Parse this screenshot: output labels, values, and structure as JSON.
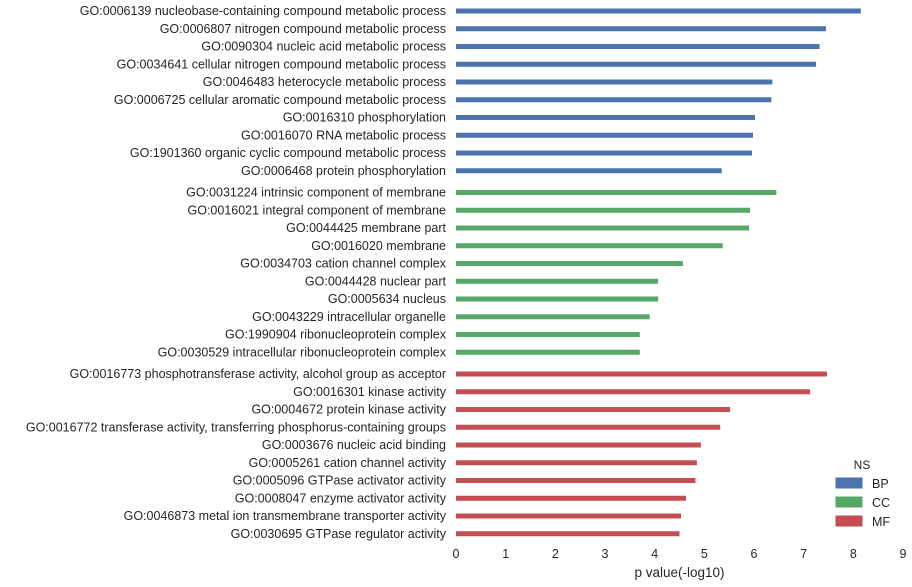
{
  "chart_data": {
    "type": "bar",
    "orientation": "horizontal",
    "xlabel": "p value(-log10)",
    "ylabel": "",
    "xlim": [
      0,
      9
    ],
    "xticks": [
      0,
      1,
      2,
      3,
      4,
      5,
      6,
      7,
      8,
      9
    ],
    "grid": false,
    "legend": {
      "title": "NS",
      "placement": "bottom-right",
      "entries": [
        {
          "name": "BP",
          "color": "#4c72b0"
        },
        {
          "name": "CC",
          "color": "#55a868"
        },
        {
          "name": "MF",
          "color": "#c44e52"
        }
      ]
    },
    "bars": [
      {
        "label": "GO:0006139 nucleobase-containing compound metabolic process",
        "value": 8.15,
        "group": "BP"
      },
      {
        "label": "GO:0006807 nitrogen compound metabolic process",
        "value": 7.45,
        "group": "BP"
      },
      {
        "label": "GO:0090304 nucleic acid metabolic process",
        "value": 7.32,
        "group": "BP"
      },
      {
        "label": "GO:0034641 cellular nitrogen compound metabolic process",
        "value": 7.25,
        "group": "BP"
      },
      {
        "label": "GO:0046483 heterocycle metabolic process",
        "value": 6.37,
        "group": "BP"
      },
      {
        "label": "GO:0006725 cellular aromatic compound metabolic process",
        "value": 6.35,
        "group": "BP"
      },
      {
        "label": "GO:0016310 phosphorylation",
        "value": 6.02,
        "group": "BP"
      },
      {
        "label": "GO:0016070 RNA metabolic process",
        "value": 5.98,
        "group": "BP"
      },
      {
        "label": "GO:1901360 organic cyclic compound metabolic process",
        "value": 5.96,
        "group": "BP"
      },
      {
        "label": "GO:0006468 protein phosphorylation",
        "value": 5.35,
        "group": "BP"
      },
      {
        "label": "GO:0031224 intrinsic component of membrane",
        "value": 6.45,
        "group": "CC"
      },
      {
        "label": "GO:0016021 integral component of membrane",
        "value": 5.92,
        "group": "CC"
      },
      {
        "label": "GO:0044425 membrane part",
        "value": 5.9,
        "group": "CC"
      },
      {
        "label": "GO:0016020 membrane",
        "value": 5.37,
        "group": "CC"
      },
      {
        "label": "GO:0034703 cation channel complex",
        "value": 4.57,
        "group": "CC"
      },
      {
        "label": "GO:0044428 nuclear part",
        "value": 4.07,
        "group": "CC"
      },
      {
        "label": "GO:0005634 nucleus",
        "value": 4.07,
        "group": "CC"
      },
      {
        "label": "GO:0043229 intracellular organelle",
        "value": 3.9,
        "group": "CC"
      },
      {
        "label": "GO:1990904 ribonucleoprotein complex",
        "value": 3.7,
        "group": "CC"
      },
      {
        "label": "GO:0030529 intracellular ribonucleoprotein complex",
        "value": 3.7,
        "group": "CC"
      },
      {
        "label": "GO:0016773 phosphotransferase activity, alcohol group as acceptor",
        "value": 7.47,
        "group": "MF"
      },
      {
        "label": "GO:0016301 kinase activity",
        "value": 7.13,
        "group": "MF"
      },
      {
        "label": "GO:0004672 protein kinase activity",
        "value": 5.52,
        "group": "MF"
      },
      {
        "label": "GO:0016772 transferase activity, transferring phosphorus-containing groups",
        "value": 5.32,
        "group": "MF"
      },
      {
        "label": "GO:0003676 nucleic acid binding",
        "value": 4.93,
        "group": "MF"
      },
      {
        "label": "GO:0005261 cation channel activity",
        "value": 4.85,
        "group": "MF"
      },
      {
        "label": "GO:0005096 GTPase activator activity",
        "value": 4.82,
        "group": "MF"
      },
      {
        "label": "GO:0008047 enzyme activator activity",
        "value": 4.63,
        "group": "MF"
      },
      {
        "label": "GO:0046873 metal ion transmembrane transporter activity",
        "value": 4.53,
        "group": "MF"
      },
      {
        "label": "GO:0030695 GTPase regulator activity",
        "value": 4.5,
        "group": "MF"
      }
    ]
  }
}
